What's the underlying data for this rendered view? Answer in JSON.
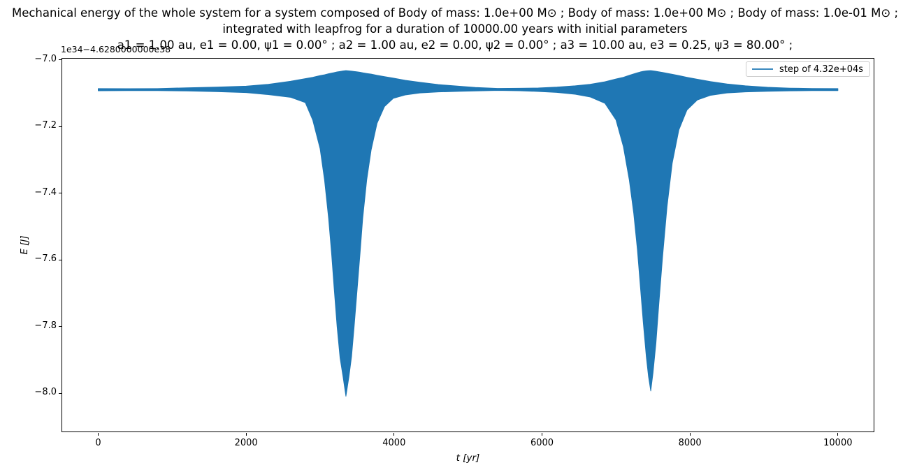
{
  "chart_data": {
    "type": "line",
    "title_lines": [
      "Mechanical energy of the whole system for a system composed of Body of mass: 1.0e+00 M⊙ ; Body of mass: 1.0e+00 M⊙ ; Body of mass: 1.0e-01 M⊙ ;",
      "integrated with leapfrog for a duration of 10000.00 years with initial parameters",
      "a1 = 1.00 au, e1 = 0.00, ψ1 = 0.00° ; a2 = 1.00 au, e2 = 0.00, ψ2 = 0.00° ; a3 = 10.00 au, e3 = 0.25, ψ3 = 80.00° ;"
    ],
    "xlabel": "t [yr]",
    "ylabel": "E [J]",
    "y_offset_text": "1e34−4.6280000000e38",
    "x_ticks": [
      0,
      2000,
      4000,
      6000,
      8000,
      10000
    ],
    "x_tick_labels": [
      "0",
      "2000",
      "4000",
      "6000",
      "8000",
      "10000"
    ],
    "y_ticks": [
      -7.0,
      -7.2,
      -7.4,
      -7.6,
      -7.8,
      -8.0
    ],
    "y_tick_labels": [
      "−7.0",
      "−7.2",
      "−7.4",
      "−7.6",
      "−7.8",
      "−8.0"
    ],
    "xlim": [
      -496,
      10493
    ],
    "ylim": [
      -8.117,
      -6.994
    ],
    "grid": false,
    "line_color": "#1f77b4",
    "axis_color": "#000000",
    "legend": {
      "position": "upper right",
      "border_color": "#cccccc",
      "items": [
        {
          "label": "step of 4.32e+04s",
          "color": "#1f77b4"
        }
      ]
    },
    "baseline_E_approx": -7.089,
    "dips": [
      {
        "t_approx": 3350,
        "E_min_approx": -8.01
      },
      {
        "t_approx": 7470,
        "E_min_approx": -7.99
      }
    ],
    "envelope": {
      "t": [
        0,
        400,
        800,
        1200,
        1600,
        2000,
        2300,
        2600,
        2800,
        2900,
        3000,
        3060,
        3115,
        3155,
        3190,
        3230,
        3270,
        3310,
        3349,
        3390,
        3425,
        3460,
        3500,
        3540,
        3576,
        3630,
        3690,
        3770,
        3870,
        3990,
        4150,
        4350,
        4600,
        4900,
        5100,
        5400,
        5700,
        5950,
        6200,
        6450,
        6650,
        6850,
        7000,
        7100,
        7180,
        7240,
        7290,
        7330,
        7370,
        7410,
        7440,
        7470,
        7500,
        7540,
        7580,
        7630,
        7690,
        7760,
        7850,
        7960,
        8100,
        8280,
        8500,
        8750,
        9050,
        9350,
        9650,
        10000
      ],
      "top": [
        -7.086,
        -7.0862,
        -7.0858,
        -7.0835,
        -7.0815,
        -7.0785,
        -7.073,
        -7.064,
        -7.056,
        -7.052,
        -7.047,
        -7.0445,
        -7.0415,
        -7.0395,
        -7.038,
        -7.036,
        -7.0345,
        -7.033,
        -7.032,
        -7.0328,
        -7.0335,
        -7.0345,
        -7.0355,
        -7.037,
        -7.0385,
        -7.0405,
        -7.0425,
        -7.046,
        -7.05,
        -7.0545,
        -7.061,
        -7.067,
        -7.074,
        -7.079,
        -7.0825,
        -7.0855,
        -7.085,
        -7.084,
        -7.0815,
        -7.0775,
        -7.073,
        -7.0655,
        -7.057,
        -7.052,
        -7.046,
        -7.042,
        -7.0385,
        -7.036,
        -7.034,
        -7.0328,
        -7.0322,
        -7.032,
        -7.0328,
        -7.034,
        -7.0355,
        -7.0375,
        -7.04,
        -7.043,
        -7.047,
        -7.052,
        -7.058,
        -7.065,
        -7.072,
        -7.0775,
        -7.082,
        -7.0845,
        -7.0856,
        -7.086
      ],
      "bottom": [
        -7.0925,
        -7.092,
        -7.092,
        -7.093,
        -7.095,
        -7.098,
        -7.104,
        -7.112,
        -7.128,
        -7.18,
        -7.266,
        -7.36,
        -7.475,
        -7.58,
        -7.685,
        -7.8,
        -7.894,
        -7.95,
        -8.009,
        -7.95,
        -7.89,
        -7.8,
        -7.69,
        -7.58,
        -7.475,
        -7.36,
        -7.27,
        -7.19,
        -7.14,
        -7.115,
        -7.105,
        -7.099,
        -7.096,
        -7.094,
        -7.093,
        -7.0915,
        -7.0925,
        -7.0945,
        -7.0975,
        -7.103,
        -7.111,
        -7.13,
        -7.18,
        -7.26,
        -7.36,
        -7.46,
        -7.57,
        -7.68,
        -7.79,
        -7.89,
        -7.95,
        -7.993,
        -7.94,
        -7.85,
        -7.73,
        -7.59,
        -7.44,
        -7.31,
        -7.21,
        -7.15,
        -7.12,
        -7.106,
        -7.099,
        -7.096,
        -7.094,
        -7.0928,
        -7.092,
        -7.092
      ]
    }
  }
}
